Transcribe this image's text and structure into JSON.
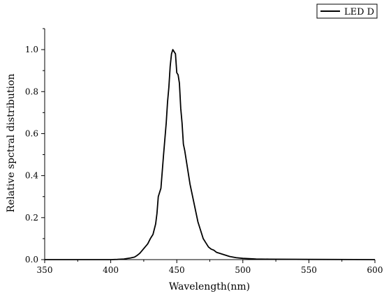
{
  "chart_data": {
    "type": "line",
    "title": "",
    "xlabel": "Wavelength(nm)",
    "ylabel": "Relative spctral distribution",
    "xlim": [
      350,
      600
    ],
    "ylim": [
      0,
      1.1
    ],
    "x_ticks": [
      "350",
      "400",
      "450",
      "500",
      "550",
      "600"
    ],
    "y_ticks": [
      "0.0",
      "0.2",
      "0.4",
      "0.6",
      "0.8",
      "1.0"
    ],
    "grid": false,
    "legend_position": "top-right",
    "series": [
      {
        "name": "LED D",
        "color": "#000000",
        "points": [
          [
            350,
            0.0
          ],
          [
            380,
            0.0
          ],
          [
            400,
            0.0
          ],
          [
            405,
            0.001
          ],
          [
            410,
            0.003
          ],
          [
            415,
            0.008
          ],
          [
            418,
            0.012
          ],
          [
            420,
            0.02
          ],
          [
            422,
            0.03
          ],
          [
            424,
            0.045
          ],
          [
            426,
            0.06
          ],
          [
            428,
            0.075
          ],
          [
            430,
            0.1
          ],
          [
            432,
            0.12
          ],
          [
            434,
            0.17
          ],
          [
            435,
            0.22
          ],
          [
            436,
            0.3
          ],
          [
            438,
            0.34
          ],
          [
            440,
            0.5
          ],
          [
            442,
            0.65
          ],
          [
            443,
            0.75
          ],
          [
            444,
            0.82
          ],
          [
            445,
            0.92
          ],
          [
            446,
            0.98
          ],
          [
            447,
            1.0
          ],
          [
            448,
            0.99
          ],
          [
            449,
            0.98
          ],
          [
            450,
            0.89
          ],
          [
            451,
            0.88
          ],
          [
            452,
            0.84
          ],
          [
            453,
            0.72
          ],
          [
            454,
            0.65
          ],
          [
            455,
            0.55
          ],
          [
            456,
            0.52
          ],
          [
            458,
            0.44
          ],
          [
            460,
            0.36
          ],
          [
            462,
            0.3
          ],
          [
            464,
            0.24
          ],
          [
            466,
            0.18
          ],
          [
            468,
            0.14
          ],
          [
            470,
            0.1
          ],
          [
            472,
            0.08
          ],
          [
            474,
            0.06
          ],
          [
            476,
            0.05
          ],
          [
            478,
            0.045
          ],
          [
            480,
            0.035
          ],
          [
            485,
            0.025
          ],
          [
            490,
            0.015
          ],
          [
            495,
            0.009
          ],
          [
            500,
            0.006
          ],
          [
            510,
            0.003
          ],
          [
            520,
            0.002
          ],
          [
            550,
            0.001
          ],
          [
            600,
            0.0
          ]
        ]
      }
    ]
  }
}
